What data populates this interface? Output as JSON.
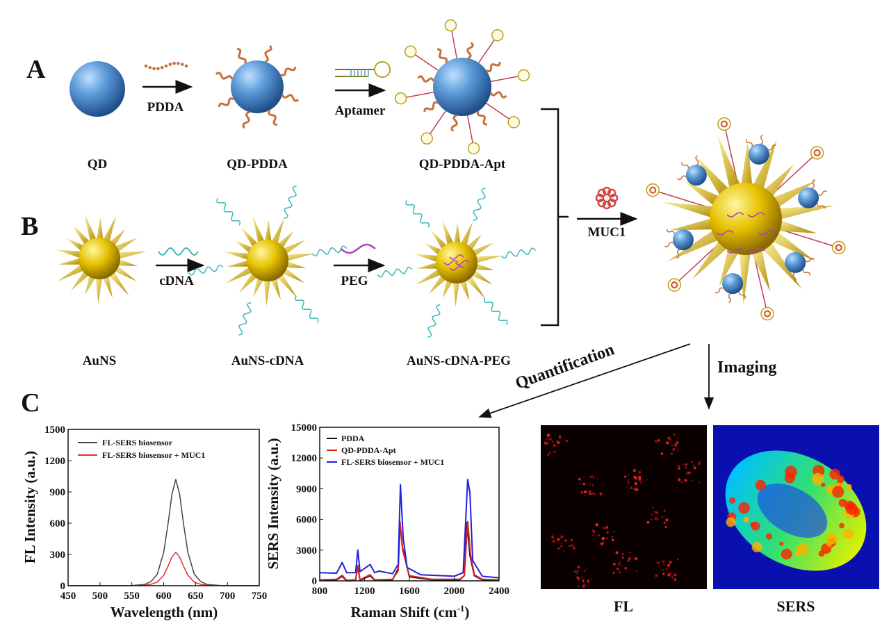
{
  "panels": {
    "A": "A",
    "B": "B",
    "C": "C"
  },
  "row_a": {
    "labels": [
      "QD",
      "QD-PDDA",
      "QD-PDDA-Apt"
    ],
    "arrows": [
      "PDDA",
      "Aptamer"
    ]
  },
  "row_b": {
    "labels": [
      "AuNS",
      "AuNS-cDNA",
      "AuNS-cDNA-PEG"
    ],
    "arrows": [
      "cDNA",
      "PEG"
    ]
  },
  "combine_arrow": "MUC1",
  "branch_arrows": {
    "quantification": "Quantification",
    "imaging": "Imaging"
  },
  "images": {
    "fl": "FL",
    "sers": "SERS"
  },
  "colors": {
    "qd": "#4a86c8",
    "gold": "#e0b400",
    "pdda": "#c8703a",
    "cdna": "#3bb8b8",
    "peg": "#b03cc0"
  },
  "chart_data": [
    {
      "type": "line",
      "xlabel": "Wavelength (nm)",
      "ylabel": "FL Intensity (a.u.)",
      "xlim": [
        450,
        750
      ],
      "ylim": [
        0,
        1500
      ],
      "xticks": [
        450,
        500,
        550,
        600,
        650,
        700,
        750
      ],
      "yticks": [
        0,
        300,
        600,
        900,
        1200,
        1500
      ],
      "legend_placement": "top-left",
      "grid": false,
      "series": [
        {
          "name": "FL-SERS biosensor",
          "color": "#444444",
          "points": [
            [
              450,
              0
            ],
            [
              550,
              2
            ],
            [
              570,
              12
            ],
            [
              580,
              40
            ],
            [
              590,
              110
            ],
            [
              600,
              320
            ],
            [
              607,
              600
            ],
            [
              613,
              880
            ],
            [
              619,
              1020
            ],
            [
              625,
              880
            ],
            [
              631,
              600
            ],
            [
              638,
              320
            ],
            [
              648,
              110
            ],
            [
              658,
              40
            ],
            [
              668,
              12
            ],
            [
              690,
              2
            ],
            [
              750,
              0
            ]
          ]
        },
        {
          "name": "FL-SERS biosensor + MUC1",
          "color": "#e03030",
          "points": [
            [
              450,
              0
            ],
            [
              550,
              1
            ],
            [
              570,
              4
            ],
            [
              580,
              13
            ],
            [
              590,
              35
            ],
            [
              600,
              100
            ],
            [
              607,
              190
            ],
            [
              613,
              275
            ],
            [
              619,
              320
            ],
            [
              625,
              275
            ],
            [
              631,
              190
            ],
            [
              638,
              100
            ],
            [
              648,
              35
            ],
            [
              658,
              13
            ],
            [
              668,
              4
            ],
            [
              690,
              1
            ],
            [
              750,
              0
            ]
          ]
        }
      ]
    },
    {
      "type": "line",
      "xlabel": "Raman Shift (cm-1)",
      "ylabel": "SERS Intensity (a.u.)",
      "xlim": [
        800,
        2400
      ],
      "ylim": [
        0,
        15000
      ],
      "xticks": [
        800,
        1200,
        1600,
        2000,
        2400
      ],
      "yticks": [
        0,
        3000,
        6000,
        9000,
        12000,
        15000
      ],
      "legend_placement": "top-left",
      "grid": false,
      "series": [
        {
          "name": "PDDA",
          "color": "#111111",
          "points": [
            [
              800,
              50
            ],
            [
              950,
              100
            ],
            [
              1000,
              450
            ],
            [
              1040,
              0
            ],
            [
              1120,
              50
            ],
            [
              1140,
              1400
            ],
            [
              1160,
              50
            ],
            [
              1250,
              500
            ],
            [
              1290,
              50
            ],
            [
              1450,
              100
            ],
            [
              1500,
              1200
            ],
            [
              1515,
              5800
            ],
            [
              1540,
              3200
            ],
            [
              1600,
              400
            ],
            [
              1800,
              100
            ],
            [
              2050,
              100
            ],
            [
              2090,
              500
            ],
            [
              2115,
              5700
            ],
            [
              2140,
              2500
            ],
            [
              2180,
              500
            ],
            [
              2250,
              100
            ],
            [
              2400,
              50
            ]
          ]
        },
        {
          "name": "QD-PDDA-Apt",
          "color": "#e02020",
          "points": [
            [
              800,
              100
            ],
            [
              950,
              150
            ],
            [
              1000,
              550
            ],
            [
              1040,
              50
            ],
            [
              1120,
              100
            ],
            [
              1140,
              1500
            ],
            [
              1160,
              100
            ],
            [
              1250,
              600
            ],
            [
              1290,
              100
            ],
            [
              1450,
              150
            ],
            [
              1500,
              1000
            ],
            [
              1518,
              5600
            ],
            [
              1540,
              3000
            ],
            [
              1600,
              500
            ],
            [
              1800,
              150
            ],
            [
              2050,
              150
            ],
            [
              2090,
              500
            ],
            [
              2120,
              5800
            ],
            [
              2145,
              2600
            ],
            [
              2180,
              600
            ],
            [
              2250,
              150
            ],
            [
              2400,
              100
            ]
          ]
        },
        {
          "name": "FL-SERS biosensor + MUC1",
          "color": "#2020e0",
          "points": [
            [
              800,
              800
            ],
            [
              950,
              750
            ],
            [
              1000,
              1800
            ],
            [
              1040,
              800
            ],
            [
              1120,
              800
            ],
            [
              1140,
              3000
            ],
            [
              1160,
              900
            ],
            [
              1250,
              1600
            ],
            [
              1290,
              800
            ],
            [
              1330,
              950
            ],
            [
              1450,
              700
            ],
            [
              1500,
              1600
            ],
            [
              1520,
              9400
            ],
            [
              1545,
              4200
            ],
            [
              1580,
              1300
            ],
            [
              1700,
              600
            ],
            [
              2000,
              450
            ],
            [
              2080,
              800
            ],
            [
              2120,
              9900
            ],
            [
              2140,
              8600
            ],
            [
              2165,
              2000
            ],
            [
              2250,
              450
            ],
            [
              2400,
              300
            ]
          ]
        }
      ]
    }
  ]
}
